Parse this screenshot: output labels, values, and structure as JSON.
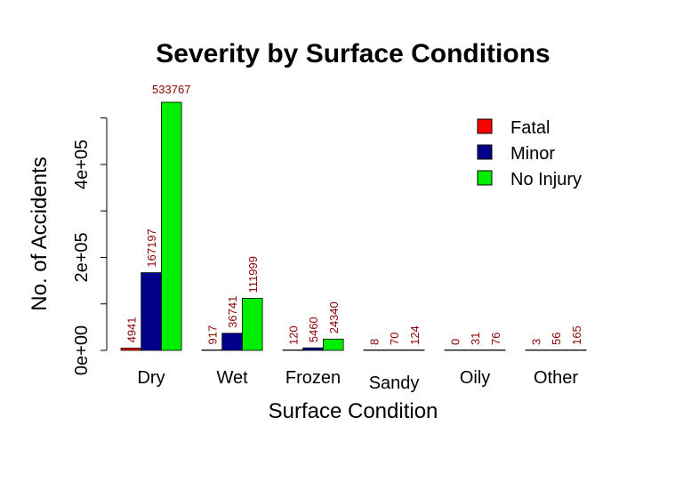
{
  "chart_data": {
    "type": "bar",
    "title": "Severity by Surface Conditions",
    "xlabel": "Surface Condition",
    "ylabel": "No. of Accidents",
    "categories": [
      "Dry",
      "Wet",
      "Frozen",
      "Sandy",
      "Oily",
      "Other"
    ],
    "series": [
      {
        "name": "Fatal",
        "color": "#ff0000",
        "values": [
          4941,
          917,
          120,
          8,
          0,
          3
        ]
      },
      {
        "name": "Minor",
        "color": "#00008b",
        "values": [
          167197,
          36741,
          5460,
          70,
          31,
          56
        ]
      },
      {
        "name": "No Injury",
        "color": "#00ee00",
        "values": [
          533767,
          111999,
          24340,
          124,
          76,
          165
        ]
      }
    ],
    "yticks": [
      0,
      200000,
      400000
    ],
    "ytick_labels": [
      "0e+00",
      "2e+05",
      "4e+05"
    ],
    "ylim": [
      0,
      533767
    ],
    "legend_position": "top-right",
    "grid": false
  }
}
